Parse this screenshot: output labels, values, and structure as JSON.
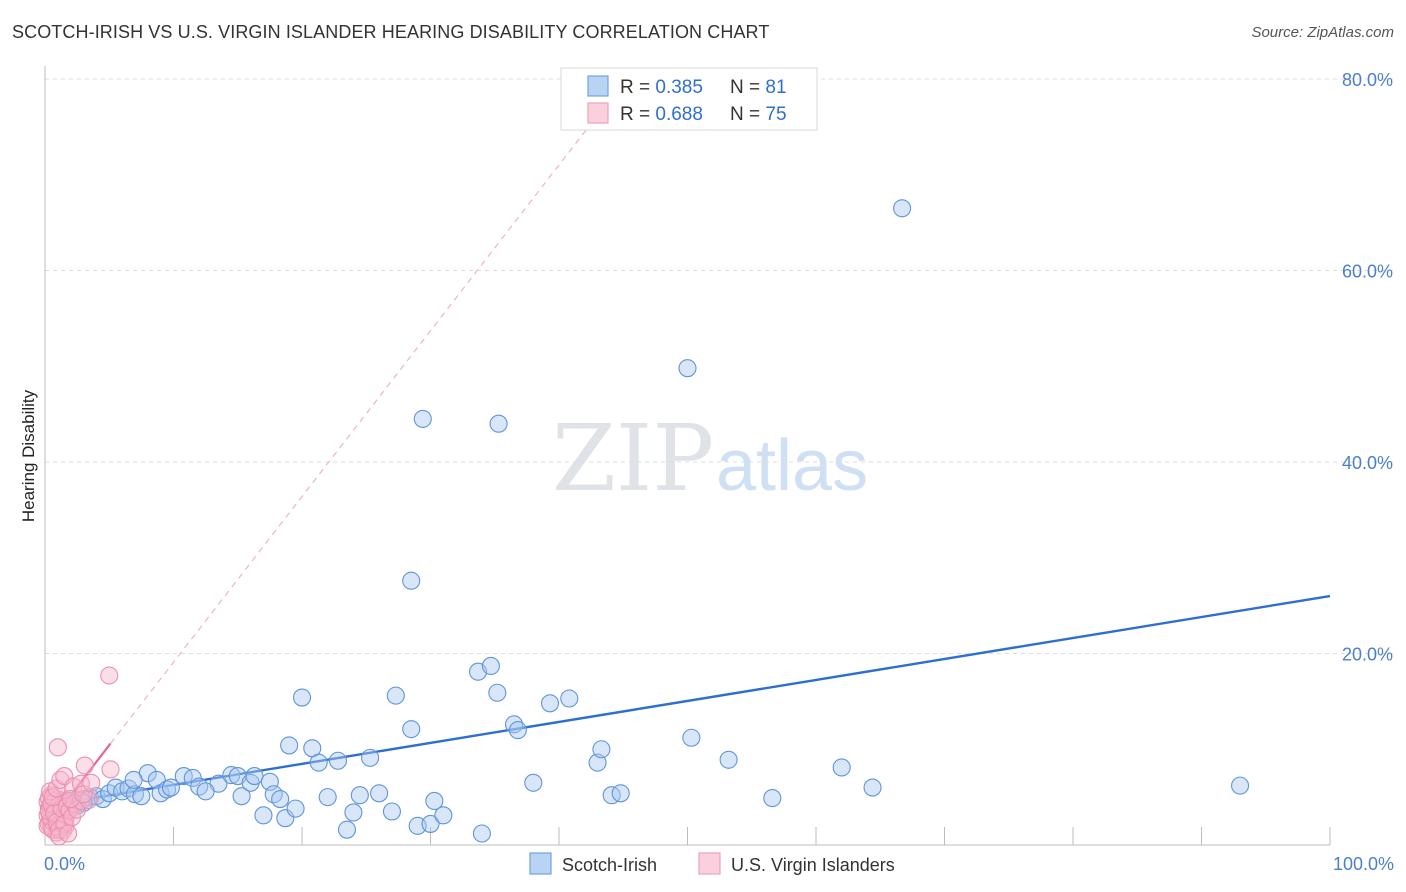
{
  "title": "SCOTCH-IRISH VS U.S. VIRGIN ISLANDER HEARING DISABILITY CORRELATION CHART",
  "source": "Source: ZipAtlas.com",
  "watermark": {
    "zip": "ZIP",
    "atlas": "atlas"
  },
  "legend": {
    "rows": [
      {
        "r_label": "R = ",
        "r_value": "0.385",
        "n_label": "N = ",
        "n_value": "81"
      },
      {
        "r_label": "R = ",
        "r_value": "0.688",
        "n_label": "N = ",
        "n_value": "75"
      }
    ]
  },
  "chart_data": {
    "type": "scatter",
    "title": "SCOTCH-IRISH VS U.S. VIRGIN ISLANDER HEARING DISABILITY CORRELATION CHART",
    "xlabel": "",
    "ylabel": "Hearing Disability",
    "xlim": [
      0,
      100
    ],
    "ylim": [
      0,
      80
    ],
    "x_tick_labels": [
      "0.0%",
      "100.0%"
    ],
    "y_ticks": [
      20,
      40,
      60,
      80
    ],
    "y_tick_labels": [
      "20.0%",
      "40.0%",
      "60.0%",
      "80.0%"
    ],
    "grid": true,
    "legend_position": "top-center",
    "colors": {
      "Scotch-Irish": "#6fa3e4",
      "U.S. Virgin Islanders": "#f0a0bb"
    },
    "trend_colors": {
      "Scotch-Irish": "#2d6fd0",
      "U.S. Virgin Islanders": "#e8638f"
    },
    "series": [
      {
        "name": "Scotch-Irish",
        "R": 0.385,
        "N": 81,
        "trend": {
          "x": [
            0.5,
            100
          ],
          "y": [
            4.2,
            26.0
          ]
        },
        "points": [
          [
            0.8,
            4.5
          ],
          [
            1.2,
            4.2
          ],
          [
            1.5,
            3.8
          ],
          [
            2.0,
            4.6
          ],
          [
            2.5,
            4.1
          ],
          [
            3.0,
            4.8
          ],
          [
            3.5,
            5.0
          ],
          [
            4.0,
            5.1
          ],
          [
            4.5,
            4.8
          ],
          [
            5.0,
            5.4
          ],
          [
            5.5,
            6.0
          ],
          [
            6.0,
            5.6
          ],
          [
            6.5,
            5.9
          ],
          [
            7.0,
            5.3
          ],
          [
            7.5,
            5.1
          ],
          [
            8.0,
            7.5
          ],
          [
            8.7,
            6.8
          ],
          [
            9.0,
            5.4
          ],
          [
            9.5,
            5.8
          ],
          [
            10.8,
            7.2
          ],
          [
            11.5,
            7.0
          ],
          [
            12.0,
            6.1
          ],
          [
            13.5,
            6.4
          ],
          [
            14.5,
            7.3
          ],
          [
            15.0,
            7.2
          ],
          [
            15.3,
            5.1
          ],
          [
            16.0,
            6.5
          ],
          [
            16.3,
            7.2
          ],
          [
            17.0,
            3.1
          ],
          [
            17.5,
            6.6
          ],
          [
            17.8,
            5.3
          ],
          [
            18.3,
            4.8
          ],
          [
            18.7,
            2.8
          ],
          [
            19.0,
            10.4
          ],
          [
            19.5,
            3.8
          ],
          [
            20.0,
            15.4
          ],
          [
            20.8,
            10.1
          ],
          [
            21.3,
            8.6
          ],
          [
            22.0,
            5.0
          ],
          [
            22.8,
            8.8
          ],
          [
            23.5,
            1.6
          ],
          [
            24.0,
            3.4
          ],
          [
            24.5,
            5.2
          ],
          [
            25.3,
            9.1
          ],
          [
            26.0,
            5.4
          ],
          [
            27.0,
            3.5
          ],
          [
            27.3,
            15.6
          ],
          [
            28.5,
            12.1
          ],
          [
            29.0,
            2.0
          ],
          [
            30.0,
            2.2
          ],
          [
            30.3,
            4.6
          ],
          [
            31.0,
            3.1
          ],
          [
            33.7,
            18.1
          ],
          [
            34.7,
            18.7
          ],
          [
            35.2,
            15.9
          ],
          [
            36.5,
            12.6
          ],
          [
            36.8,
            12.0
          ],
          [
            38.0,
            6.5
          ],
          [
            39.3,
            14.8
          ],
          [
            40.8,
            15.3
          ],
          [
            43.0,
            8.6
          ],
          [
            43.3,
            10.0
          ],
          [
            44.1,
            5.2
          ],
          [
            44.8,
            5.4
          ],
          [
            50.3,
            11.2
          ],
          [
            53.2,
            8.9
          ],
          [
            56.6,
            4.9
          ],
          [
            62.0,
            8.1
          ],
          [
            64.4,
            6.0
          ],
          [
            93.0,
            6.2
          ],
          [
            28.5,
            27.6
          ],
          [
            29.4,
            44.5
          ],
          [
            35.3,
            44.0
          ],
          [
            50.0,
            49.8
          ],
          [
            66.7,
            66.5
          ],
          [
            12.5,
            5.6
          ],
          [
            6.9,
            6.8
          ],
          [
            3.0,
            4.4
          ],
          [
            1.8,
            3.5
          ],
          [
            9.8,
            6.0
          ],
          [
            34.0,
            1.2
          ]
        ]
      },
      {
        "name": "U.S. Virgin Islanders",
        "R": 0.688,
        "N": 75,
        "trend": {
          "x": [
            0.1,
            5.1
          ],
          "y": [
            1.9,
            10.6
          ]
        },
        "trend_extended": {
          "x": [
            5.1,
            42.3
          ],
          "y": [
            10.6,
            75.0
          ]
        },
        "points": [
          [
            0.2,
            4.5
          ],
          [
            0.3,
            3.8
          ],
          [
            0.4,
            2.5
          ],
          [
            0.5,
            5.2
          ],
          [
            0.6,
            3.2
          ],
          [
            0.7,
            4.0
          ],
          [
            0.8,
            2.1
          ],
          [
            0.9,
            3.6
          ],
          [
            1.0,
            4.8
          ],
          [
            1.1,
            2.9
          ],
          [
            1.2,
            3.4
          ],
          [
            1.3,
            4.2
          ],
          [
            1.4,
            1.5
          ],
          [
            1.5,
            2.7
          ],
          [
            0.2,
            3.1
          ],
          [
            0.3,
            2.2
          ],
          [
            0.4,
            4.1
          ],
          [
            0.5,
            1.8
          ],
          [
            0.6,
            3.7
          ],
          [
            0.7,
            2.6
          ],
          [
            0.8,
            4.4
          ],
          [
            0.9,
            1.3
          ],
          [
            1.0,
            3.0
          ],
          [
            1.1,
            3.9
          ],
          [
            1.2,
            2.4
          ],
          [
            1.3,
            1.9
          ],
          [
            1.4,
            3.3
          ],
          [
            1.5,
            4.6
          ],
          [
            1.6,
            2.8
          ],
          [
            1.7,
            3.5
          ],
          [
            0.2,
            2.0
          ],
          [
            0.3,
            4.9
          ],
          [
            0.4,
            3.0
          ],
          [
            0.5,
            2.6
          ],
          [
            0.6,
            1.6
          ],
          [
            0.7,
            4.6
          ],
          [
            0.8,
            3.3
          ],
          [
            0.9,
            2.9
          ],
          [
            1.0,
            1.9
          ],
          [
            1.1,
            4.1
          ],
          [
            1.2,
            3.7
          ],
          [
            1.3,
            2.3
          ],
          [
            1.4,
            4.4
          ],
          [
            1.5,
            3.1
          ],
          [
            1.6,
            2.0
          ],
          [
            0.3,
            3.5
          ],
          [
            0.5,
            4.3
          ],
          [
            0.7,
            3.3
          ],
          [
            0.9,
            2.4
          ],
          [
            1.1,
            1.6
          ],
          [
            1.3,
            3.8
          ],
          [
            1.5,
            2.2
          ],
          [
            1.7,
            4.0
          ],
          [
            1.9,
            3.6
          ],
          [
            2.1,
            2.9
          ],
          [
            2.3,
            4.3
          ],
          [
            2.5,
            3.7
          ],
          [
            2.8,
            4.6
          ],
          [
            0.4,
            5.6
          ],
          [
            0.6,
            5.0
          ],
          [
            0.9,
            5.9
          ],
          [
            1.2,
            6.8
          ],
          [
            1.5,
            7.2
          ],
          [
            2.2,
            6.1
          ],
          [
            2.8,
            6.4
          ],
          [
            3.1,
            8.3
          ],
          [
            3.4,
            4.7
          ],
          [
            1.0,
            10.2
          ],
          [
            5.1,
            7.9
          ],
          [
            5.0,
            17.7
          ],
          [
            1.1,
            0.9
          ],
          [
            1.8,
            1.2
          ],
          [
            2.0,
            4.8
          ],
          [
            3.0,
            5.3
          ],
          [
            3.6,
            6.5
          ]
        ]
      }
    ]
  },
  "bottom_legend": {
    "items": [
      {
        "label": "Scotch-Irish",
        "color": "#6fa3e4"
      },
      {
        "label": "U.S. Virgin Islanders",
        "color": "#f0a0bb"
      }
    ]
  }
}
